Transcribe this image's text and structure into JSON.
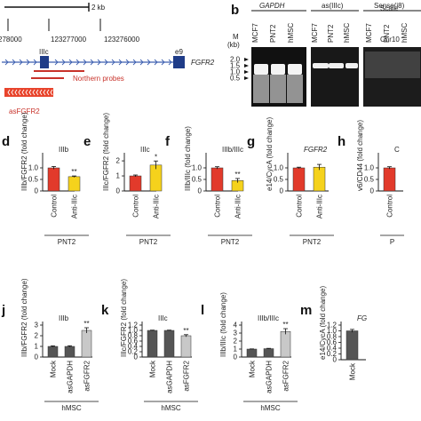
{
  "colors": {
    "red": "#e23a2b",
    "yellow": "#f5d21c",
    "dark": "#555555",
    "light": "#c8c8c8",
    "exon": "#1f3c88",
    "probe": "#c8322a",
    "asgene": "#e8442c",
    "hasp": "#3d5fb0"
  },
  "panel_a": {
    "scale_label": "2 kb",
    "scale_word": "Scale",
    "chr_label": "Chr10",
    "coord_1": "278000",
    "coord_2": "123277000",
    "coord_3": "123276000",
    "exon_iiic": "IIIc",
    "exon_e9": "e9",
    "gene": "FGFR2",
    "probes_label": "Northern probes",
    "as_label": "asFGFR2"
  },
  "panel_b": {
    "letter": "b",
    "group_1": "GAPDH",
    "group_2": "as(IIIc)",
    "group_3": "Sense(i8)",
    "marker_title_1": "M",
    "marker_title_2": "(kb)",
    "markers": [
      "2.0",
      "1.5",
      "1.0",
      "0.5"
    ],
    "lanes": [
      "MCF7",
      "PNT2",
      "hMSC",
      "MCF7",
      "PNT2",
      "hMSC",
      "MCF7",
      "PNT2",
      "hMSC"
    ]
  },
  "chart_data": [
    {
      "letter": "d",
      "type": "bar",
      "title": "IIIb",
      "ylabel": "IIIb/FGFR2 (fold change)",
      "categories": [
        "Control",
        "Anti-IIIc"
      ],
      "values": [
        1.0,
        0.62
      ],
      "errors": [
        0.06,
        0.03
      ],
      "sig": [
        "",
        "**"
      ],
      "colors": [
        "#e23a2b",
        "#f5d21c"
      ],
      "group": "PNT2",
      "ylim": [
        0,
        1.5
      ],
      "ticks": [
        "0",
        "0.5",
        "1.0"
      ]
    },
    {
      "letter": "e",
      "type": "bar",
      "title": "IIIc",
      "ylabel": "IIIc/FGFR2 (fold change)",
      "categories": [
        "Control",
        "Anti-IIIc"
      ],
      "values": [
        1.0,
        1.72
      ],
      "errors": [
        0.06,
        0.27
      ],
      "sig": [
        "",
        "*"
      ],
      "colors": [
        "#e23a2b",
        "#f5d21c"
      ],
      "group": "PNT2",
      "ylim": [
        0,
        2.3
      ],
      "ticks": [
        "0",
        "1",
        "2"
      ]
    },
    {
      "letter": "f",
      "type": "bar",
      "title": "IIIb/IIIc",
      "ylabel": "IIIb/IIIc (fold change)",
      "categories": [
        "Control",
        "Anti-IIIc"
      ],
      "values": [
        1.0,
        0.45
      ],
      "errors": [
        0.05,
        0.09
      ],
      "sig": [
        "",
        "**"
      ],
      "colors": [
        "#e23a2b",
        "#f5d21c"
      ],
      "group": "PNT2",
      "ylim": [
        0,
        1.5
      ],
      "ticks": [
        "0",
        "0.5",
        "1.0"
      ]
    },
    {
      "letter": "g",
      "type": "bar",
      "title": "FGFR2",
      "ylabel": "e14/CycA (fold change)",
      "categories": [
        "Control",
        "Anti-IIIc"
      ],
      "values": [
        1.0,
        1.03
      ],
      "errors": [
        0.03,
        0.12
      ],
      "sig": [
        "",
        ""
      ],
      "colors": [
        "#e23a2b",
        "#f5d21c"
      ],
      "group": "PNT2",
      "ylim": [
        0,
        1.5
      ],
      "ticks": [
        "0",
        "0.5",
        "1.0"
      ]
    },
    {
      "letter": "h",
      "type": "bar",
      "title": "C",
      "ylabel": "v6/CD44 (fold change)",
      "categories": [
        "Control"
      ],
      "values": [
        1.0
      ],
      "errors": [
        0.05
      ],
      "sig": [
        ""
      ],
      "colors": [
        "#e23a2b"
      ],
      "group": "P",
      "ylim": [
        0,
        1.5
      ],
      "ticks": [
        "0",
        "0.5",
        "1.0"
      ]
    },
    {
      "letter": "j",
      "type": "bar",
      "title": "IIIb",
      "ylabel": "IIIb/FGFR2 (fold change)",
      "categories": [
        "Mock",
        "asGAPDH",
        "asFGFR2"
      ],
      "values": [
        1.0,
        1.0,
        2.5
      ],
      "errors": [
        0.05,
        0.06,
        0.25
      ],
      "sig": [
        "",
        "",
        "**"
      ],
      "colors": [
        "#555555",
        "#555555",
        "#c8c8c8"
      ],
      "group": "hMSC",
      "ylim": [
        0,
        3
      ],
      "ticks": [
        "0",
        "1",
        "2",
        "3"
      ]
    },
    {
      "letter": "k",
      "type": "bar",
      "title": "IIIc",
      "ylabel": "IIIc/FGFR2 (fold change)",
      "categories": [
        "Mock",
        "asGAPDH",
        "asFGFR2"
      ],
      "values": [
        1.0,
        1.0,
        0.8
      ],
      "errors": [
        0.01,
        0.01,
        0.04
      ],
      "sig": [
        "",
        "",
        "**"
      ],
      "colors": [
        "#555555",
        "#555555",
        "#c8c8c8"
      ],
      "group": "hMSC",
      "ylim": [
        0,
        1.2
      ],
      "ticks": [
        "0",
        "0.2",
        "0.4",
        "0.6",
        "0.8",
        "1.0",
        "1.2"
      ]
    },
    {
      "letter": "l",
      "type": "bar",
      "title": "IIIb/IIIc",
      "ylabel": "IIIb/IIIc (fold change)",
      "categories": [
        "Mock",
        "asGAPDH",
        "asFGFR2"
      ],
      "values": [
        1.0,
        1.05,
        3.2
      ],
      "errors": [
        0.02,
        0.04,
        0.35
      ],
      "sig": [
        "",
        "",
        "**"
      ],
      "colors": [
        "#555555",
        "#555555",
        "#c8c8c8"
      ],
      "group": "hMSC",
      "ylim": [
        0,
        4
      ],
      "ticks": [
        "0",
        "1",
        "2",
        "3",
        "4"
      ]
    },
    {
      "letter": "m",
      "type": "bar",
      "title": "FG",
      "ylabel": "e14/CycA (fold change)",
      "categories": [
        "Mock"
      ],
      "values": [
        1.0
      ],
      "errors": [
        0.05
      ],
      "sig": [
        ""
      ],
      "colors": [
        "#555555"
      ],
      "group": "",
      "ylim": [
        0,
        1.2
      ],
      "ticks": [
        "0",
        "0.2",
        "0.4",
        "0.6",
        "0.8",
        "1.0",
        "1.2"
      ]
    }
  ]
}
